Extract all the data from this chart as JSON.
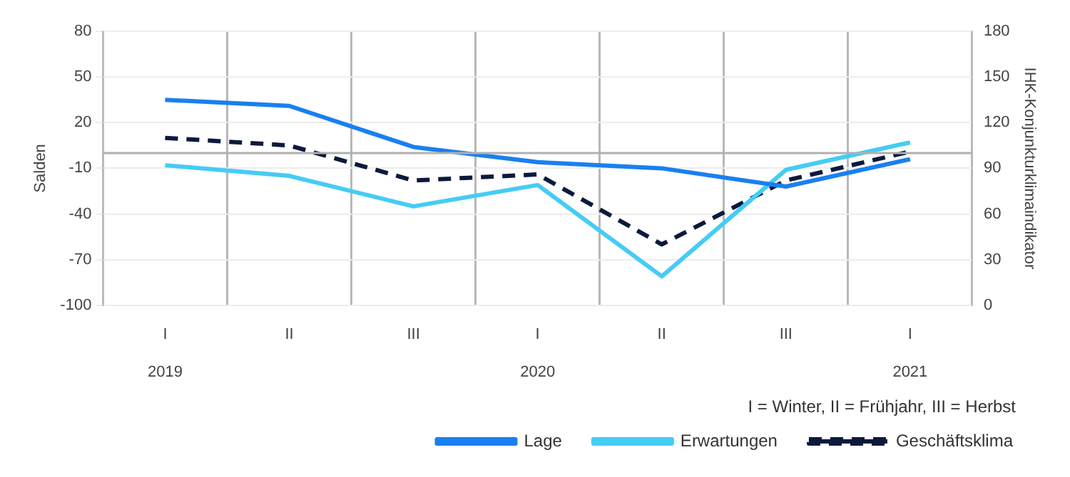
{
  "chart_data": {
    "type": "line",
    "ylabel": "Salden",
    "y2label": "IHK-Konjunkturklimaindikator",
    "categories": [
      "I\n2019",
      "II",
      "III",
      "I\n2020",
      "II",
      "III",
      "I\n2021"
    ],
    "series": [
      {
        "name": "Lage",
        "color": "#1a7ff0",
        "values": [
          35,
          31,
          4,
          -6,
          -10,
          -22,
          -4
        ],
        "line_style": "solid"
      },
      {
        "name": "Erwartungen",
        "color": "#45ccf5",
        "values": [
          -8,
          -15,
          -35,
          -21,
          -81,
          -11,
          7
        ],
        "line_style": "solid"
      },
      {
        "name": "Geschäftsklima",
        "color": "#0b1a3c",
        "values": [
          110,
          105,
          82,
          86,
          40,
          82,
          101
        ],
        "axis": "y2",
        "line_style": "dashed"
      }
    ],
    "ylim": [
      -100,
      80
    ],
    "yticks": [
      -100,
      -70,
      -40,
      -10,
      20,
      50,
      80
    ],
    "y2lim": [
      0,
      180
    ],
    "y2ticks": [
      0,
      30,
      60,
      90,
      120,
      150,
      180
    ],
    "ref_lines": [
      {
        "axis": "y",
        "value": 0,
        "color": "#b0b0b0"
      }
    ],
    "annotations": [
      "I = Winter, II = Frühjahr, III = Herbst"
    ],
    "grid": true,
    "legend": "bottom",
    "marker": "none"
  }
}
